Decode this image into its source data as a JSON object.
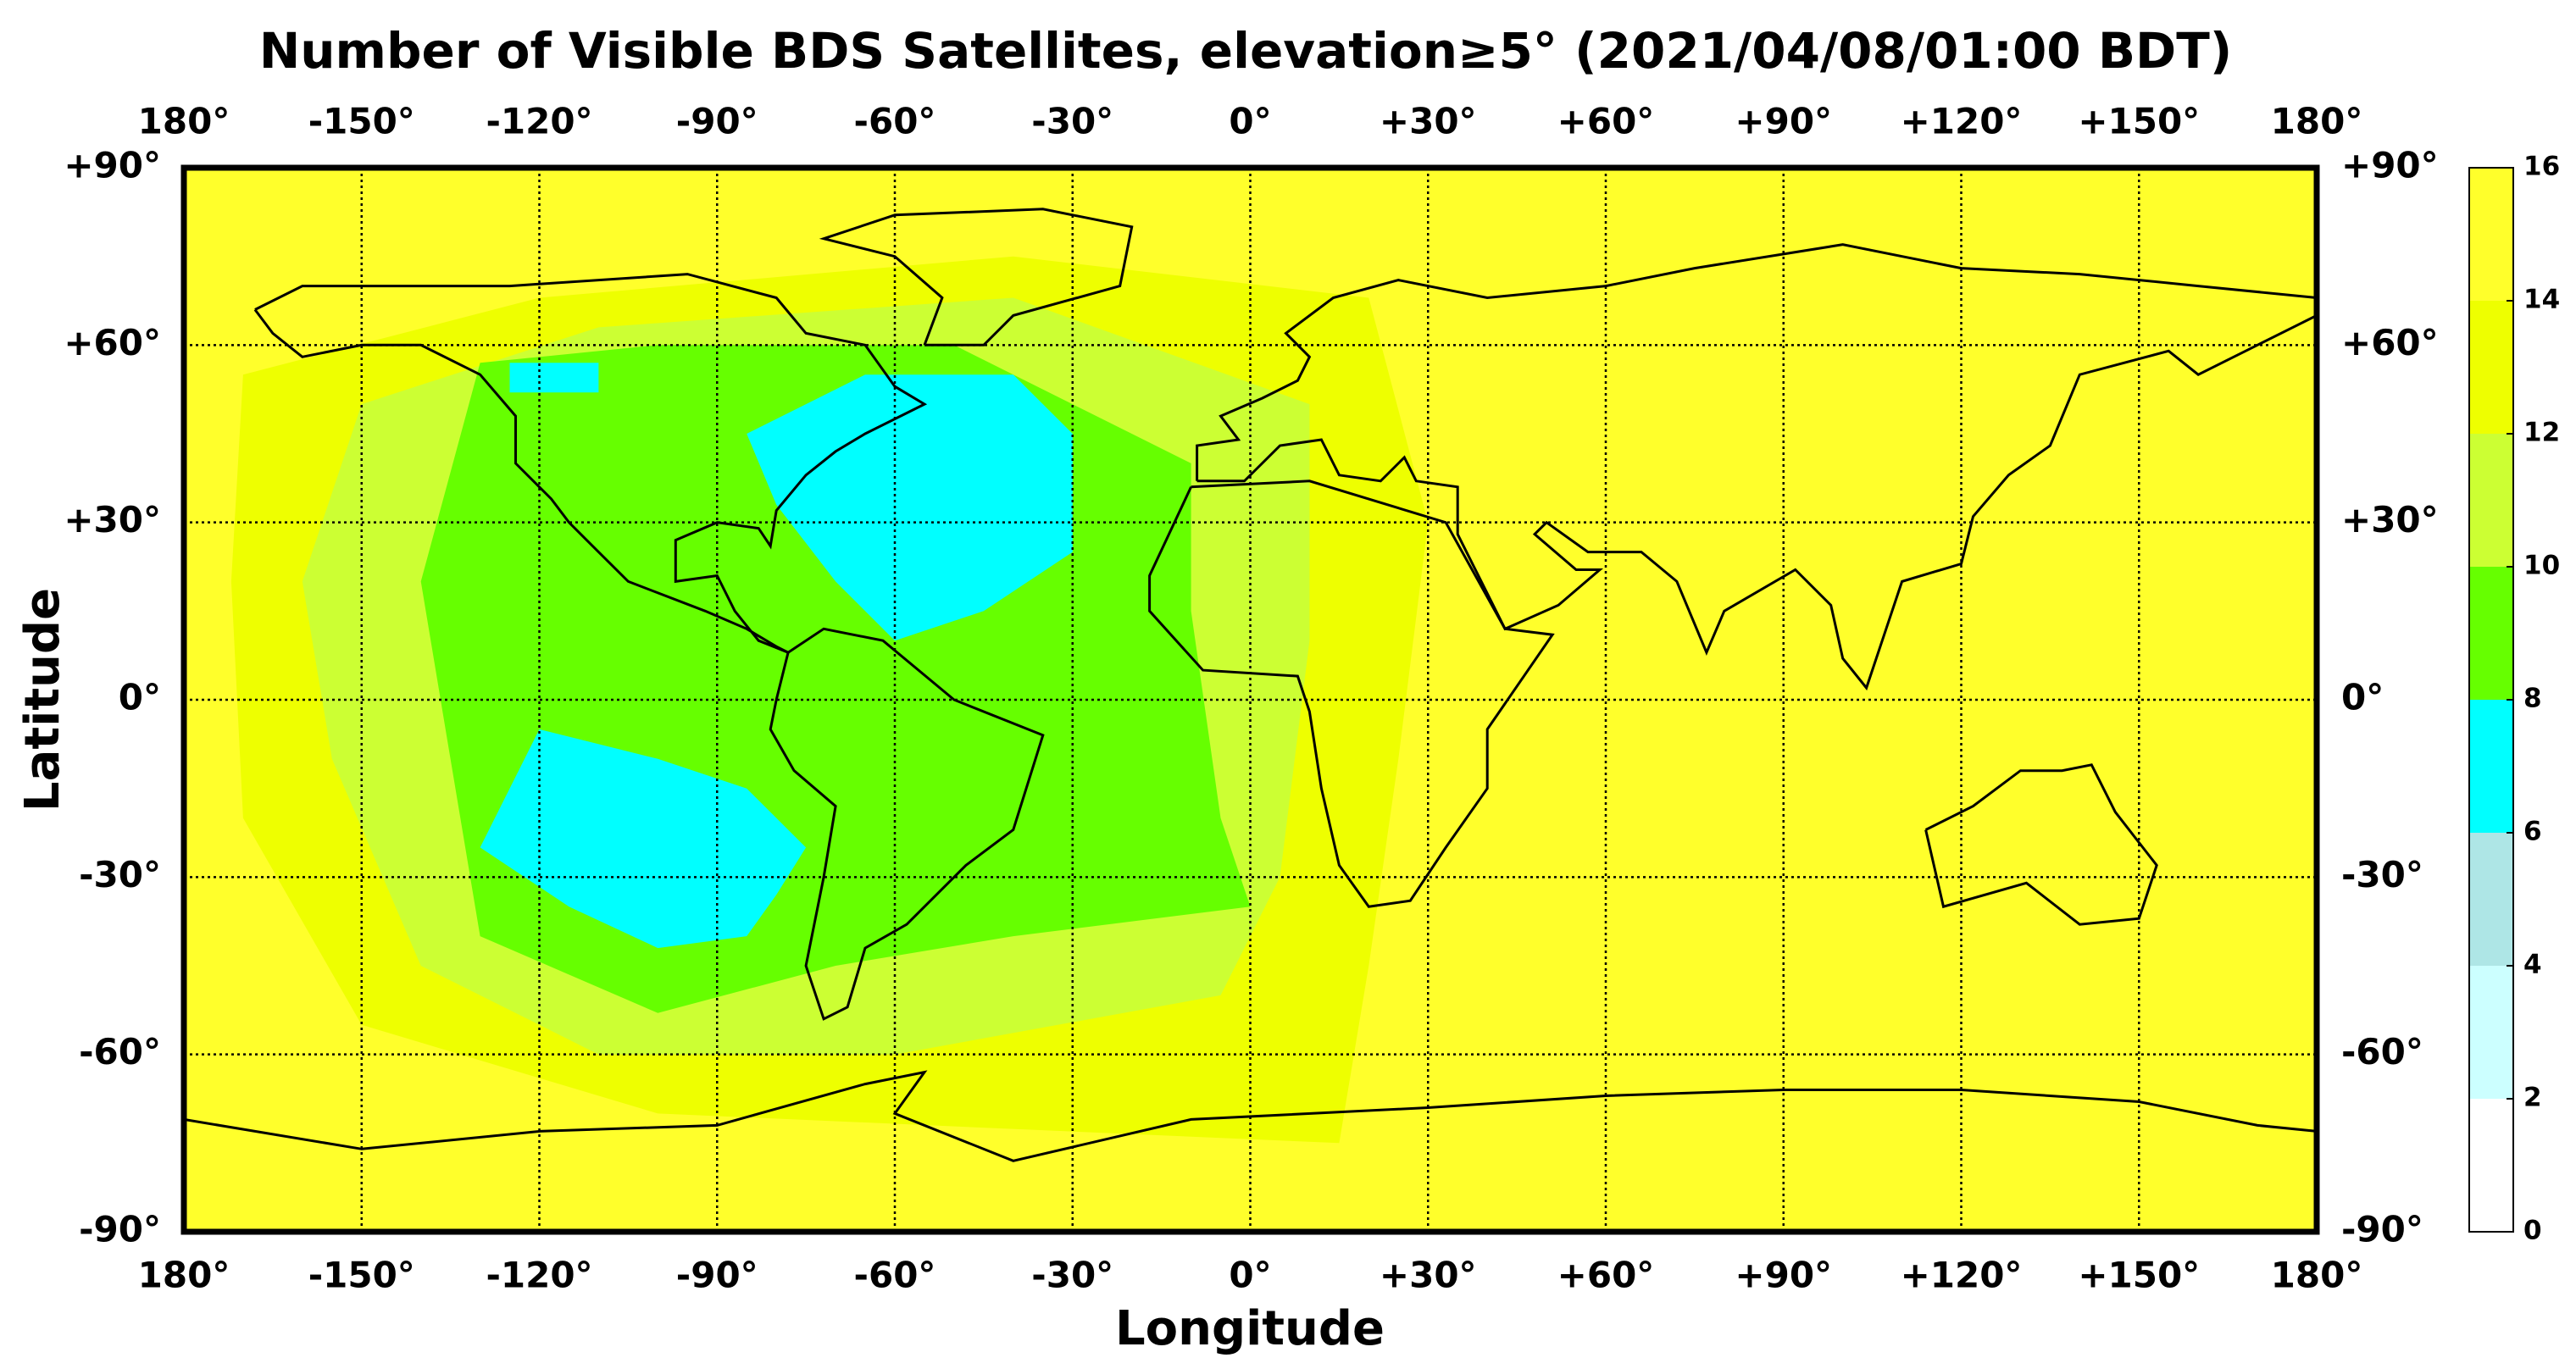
{
  "chart_data": {
    "type": "map",
    "title": "Number of Visible BDS Satellites, elevation≥5° (2021/04/08/01:00 BDT)",
    "xlabel": "Longitude",
    "ylabel": "Latitude",
    "xlim": [
      -180,
      180
    ],
    "ylim": [
      -90,
      90
    ],
    "xticks": [
      {
        "value": -180,
        "label": "180°"
      },
      {
        "value": -150,
        "label": "-150°"
      },
      {
        "value": -120,
        "label": "-120°"
      },
      {
        "value": -90,
        "label": "-90°"
      },
      {
        "value": -60,
        "label": "-60°"
      },
      {
        "value": -30,
        "label": "-30°"
      },
      {
        "value": 0,
        "label": "0°"
      },
      {
        "value": 30,
        "label": "+30°"
      },
      {
        "value": 60,
        "label": "+60°"
      },
      {
        "value": 90,
        "label": "+90°"
      },
      {
        "value": 120,
        "label": "+120°"
      },
      {
        "value": 150,
        "label": "+150°"
      },
      {
        "value": 180,
        "label": "180°"
      }
    ],
    "yticks": [
      {
        "value": 90,
        "label": "+90°"
      },
      {
        "value": 60,
        "label": "+60°"
      },
      {
        "value": 30,
        "label": "+30°"
      },
      {
        "value": 0,
        "label": "0°"
      },
      {
        "value": -30,
        "label": "-30°"
      },
      {
        "value": -60,
        "label": "-60°"
      },
      {
        "value": -90,
        "label": "-90°"
      }
    ],
    "grid": true,
    "colorbar": {
      "ticks": [
        0,
        2,
        4,
        6,
        8,
        10,
        12,
        14,
        16
      ],
      "colors": [
        "#ffffff",
        "#ccffff",
        "#aee6e6",
        "#00ffff",
        "#66ff00",
        "#ccff33",
        "#eeff00",
        "#ffff2b"
      ]
    }
  }
}
